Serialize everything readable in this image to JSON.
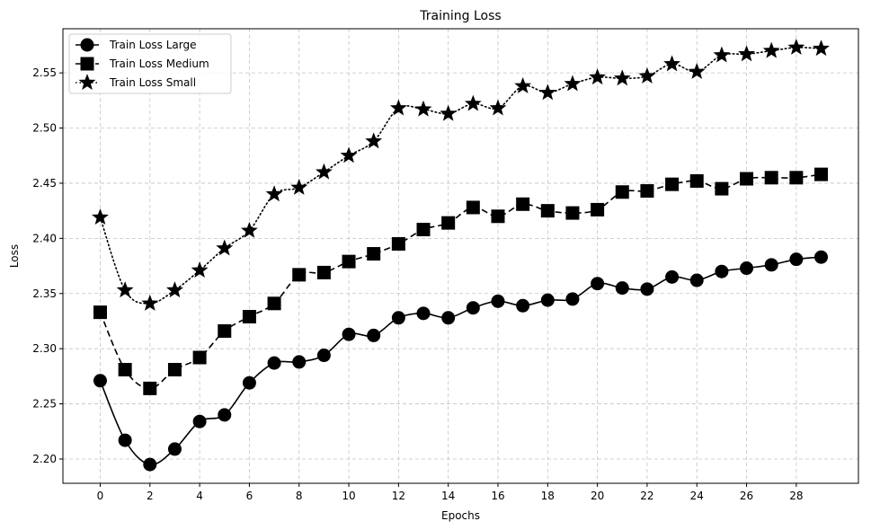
{
  "chart_data": {
    "type": "line",
    "title": "Training Loss",
    "xlabel": "Epochs",
    "ylabel": "Loss",
    "xlim": [
      -1.5,
      30.5
    ],
    "ylim": [
      2.178,
      2.59
    ],
    "xticks": [
      0,
      2,
      4,
      6,
      8,
      10,
      12,
      14,
      16,
      18,
      20,
      22,
      24,
      26,
      28
    ],
    "yticks": [
      2.2,
      2.25,
      2.3,
      2.35,
      2.4,
      2.45,
      2.5,
      2.55
    ],
    "ytick_labels": [
      "2.20",
      "2.25",
      "2.30",
      "2.35",
      "2.40",
      "2.45",
      "2.50",
      "2.55"
    ],
    "grid": true,
    "legend_position": "top-left",
    "x": [
      0,
      1,
      2,
      3,
      4,
      5,
      6,
      7,
      8,
      9,
      10,
      11,
      12,
      13,
      14,
      15,
      16,
      17,
      18,
      19,
      20,
      21,
      22,
      23,
      24,
      25,
      26,
      27,
      28,
      29
    ],
    "series": [
      {
        "name": "Train Loss Large",
        "marker": "circle",
        "line_style": "solid",
        "color": "#000000",
        "values": [
          2.271,
          2.217,
          2.195,
          2.209,
          2.234,
          2.24,
          2.269,
          2.287,
          2.288,
          2.294,
          2.313,
          2.312,
          2.328,
          2.332,
          2.328,
          2.337,
          2.343,
          2.339,
          2.344,
          2.345,
          2.359,
          2.355,
          2.354,
          2.365,
          2.362,
          2.37,
          2.373,
          2.376,
          2.381,
          2.383
        ]
      },
      {
        "name": "Train Loss Medium",
        "marker": "square",
        "line_style": "dashed",
        "color": "#000000",
        "values": [
          2.333,
          2.281,
          2.264,
          2.281,
          2.292,
          2.316,
          2.329,
          2.341,
          2.367,
          2.369,
          2.379,
          2.386,
          2.395,
          2.408,
          2.414,
          2.428,
          2.42,
          2.431,
          2.425,
          2.423,
          2.426,
          2.442,
          2.443,
          2.449,
          2.452,
          2.445,
          2.454,
          2.455,
          2.455,
          2.458
        ]
      },
      {
        "name": "Train Loss Small",
        "marker": "star",
        "line_style": "dotted",
        "color": "#000000",
        "values": [
          2.419,
          2.353,
          2.341,
          2.353,
          2.371,
          2.391,
          2.407,
          2.44,
          2.446,
          2.46,
          2.475,
          2.488,
          2.518,
          2.517,
          2.513,
          2.522,
          2.518,
          2.538,
          2.532,
          2.54,
          2.546,
          2.545,
          2.547,
          2.558,
          2.551,
          2.566,
          2.567,
          2.57,
          2.573,
          2.572
        ]
      }
    ]
  }
}
